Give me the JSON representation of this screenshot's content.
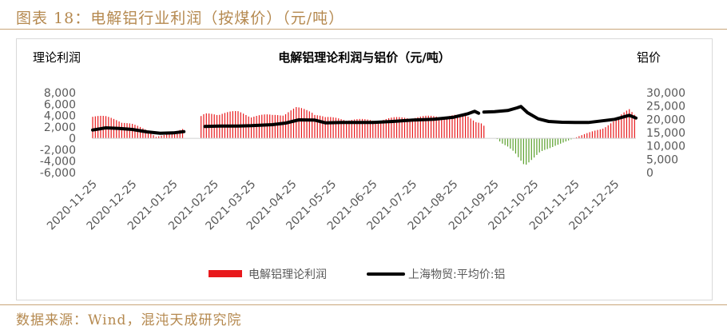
{
  "figure_title": "图表 18：电解铝行业利润（按煤价）（元/吨）",
  "source_text": "数据来源：Wind，混沌天成研究院",
  "colors": {
    "profit_bar": "#e8191c",
    "profit_negative": "#5aa02c",
    "price_line": "#000000",
    "accent": "#b5894f"
  },
  "chart_data": {
    "type": "bar+line",
    "title": "电解铝理论利润与铝价（元/吨）",
    "ylabel_left": "理论利润",
    "ylabel_right": "铝价",
    "left_ylim": [
      -6000,
      8000
    ],
    "left_ticks": [
      "8,000",
      "6,000",
      "4,000",
      "2,000",
      "0",
      "-2,000",
      "-4,000",
      "-6,000"
    ],
    "right_ylim": [
      0,
      30000
    ],
    "right_ticks": [
      "30,000",
      "25,000",
      "20,000",
      "15,000",
      "10,000",
      "5,000",
      "0"
    ],
    "x_tick_labels": [
      "2020-11-25",
      "2020-12-25",
      "2021-01-25",
      "2021-02-25",
      "2021-03-25",
      "2021-04-25",
      "2021-05-25",
      "2021-06-25",
      "2021-07-25",
      "2021-08-25",
      "2021-09-25",
      "2021-10-25",
      "2021-11-25",
      "2021-12-25"
    ],
    "x_range": [
      "2020-11-25",
      "2022-01-10"
    ],
    "legend": [
      "电解铝理论利润",
      "上海物贸:平均价:铝"
    ],
    "legend_position": "bottom",
    "grid": false,
    "profit_series_name": "电解铝理论利润",
    "profit_points": [
      [
        "2020-11-25",
        4200
      ],
      [
        "2020-12-05",
        3900
      ],
      [
        "2020-12-15",
        3300
      ],
      [
        "2020-12-25",
        2600
      ],
      [
        "2021-01-05",
        1500
      ],
      [
        "2021-01-12",
        300
      ],
      [
        "2021-01-20",
        700
      ],
      [
        "2021-01-28",
        1300
      ],
      [
        "2021-02-05",
        2300
      ],
      [
        "2021-02-18",
        4400
      ],
      [
        "2021-03-01",
        4700
      ],
      [
        "2021-03-15",
        4800
      ],
      [
        "2021-03-25",
        4200
      ],
      [
        "2021-04-10",
        4200
      ],
      [
        "2021-04-20",
        4700
      ],
      [
        "2021-04-28",
        5500
      ],
      [
        "2021-05-10",
        5000
      ],
      [
        "2021-05-20",
        3800
      ],
      [
        "2021-06-01",
        3600
      ],
      [
        "2021-06-25",
        3300
      ],
      [
        "2021-07-10",
        3700
      ],
      [
        "2021-07-25",
        3900
      ],
      [
        "2021-08-10",
        4000
      ],
      [
        "2021-08-25",
        4200
      ],
      [
        "2021-09-05",
        4000
      ],
      [
        "2021-09-15",
        2800
      ],
      [
        "2021-09-25",
        300
      ],
      [
        "2021-10-01",
        -1000
      ],
      [
        "2021-10-10",
        -2500
      ],
      [
        "2021-10-18",
        -4800
      ],
      [
        "2021-10-25",
        -3600
      ],
      [
        "2021-11-01",
        -2300
      ],
      [
        "2021-11-10",
        -1300
      ],
      [
        "2021-11-20",
        -400
      ],
      [
        "2021-11-28",
        400
      ],
      [
        "2021-12-05",
        1000
      ],
      [
        "2021-12-15",
        1800
      ],
      [
        "2021-12-25",
        3200
      ],
      [
        "2022-01-05",
        5400
      ],
      [
        "2022-01-10",
        4500
      ]
    ],
    "profit_gaps": [
      [
        "2021-02-01",
        "2021-02-14"
      ],
      [
        "2021-09-18",
        "2021-09-26"
      ]
    ],
    "price_series_name": "上海物贸:平均价:铝",
    "price_points": [
      [
        "2020-11-25",
        16000
      ],
      [
        "2020-12-05",
        16800
      ],
      [
        "2020-12-15",
        16600
      ],
      [
        "2020-12-25",
        16200
      ],
      [
        "2021-01-05",
        15300
      ],
      [
        "2021-01-15",
        14800
      ],
      [
        "2021-01-25",
        14900
      ],
      [
        "2021-02-02",
        15400
      ],
      [
        "2021-02-18",
        17300
      ],
      [
        "2021-03-01",
        17500
      ],
      [
        "2021-03-15",
        17500
      ],
      [
        "2021-03-25",
        17600
      ],
      [
        "2021-04-10",
        18000
      ],
      [
        "2021-04-20",
        18600
      ],
      [
        "2021-04-30",
        19800
      ],
      [
        "2021-05-12",
        19700
      ],
      [
        "2021-05-20",
        18700
      ],
      [
        "2021-06-01",
        18800
      ],
      [
        "2021-06-25",
        18800
      ],
      [
        "2021-07-10",
        19200
      ],
      [
        "2021-07-25",
        19700
      ],
      [
        "2021-08-10",
        20000
      ],
      [
        "2021-08-25",
        20800
      ],
      [
        "2021-09-05",
        22100
      ],
      [
        "2021-09-10",
        23000
      ],
      [
        "2021-09-13",
        22300
      ],
      [
        "2021-09-17",
        22700
      ],
      [
        "2021-09-25",
        22900
      ],
      [
        "2021-10-05",
        23300
      ],
      [
        "2021-10-12",
        24300
      ],
      [
        "2021-10-15",
        24800
      ],
      [
        "2021-10-20",
        22500
      ],
      [
        "2021-10-28",
        20200
      ],
      [
        "2021-11-05",
        19200
      ],
      [
        "2021-11-15",
        18900
      ],
      [
        "2021-11-25",
        18800
      ],
      [
        "2021-12-05",
        18800
      ],
      [
        "2021-12-15",
        19400
      ],
      [
        "2021-12-25",
        20000
      ],
      [
        "2022-01-05",
        21500
      ],
      [
        "2022-01-10",
        20500
      ]
    ],
    "price_gaps": [
      [
        "2021-02-03",
        "2021-02-17"
      ],
      [
        "2021-09-14",
        "2021-09-16"
      ]
    ]
  }
}
